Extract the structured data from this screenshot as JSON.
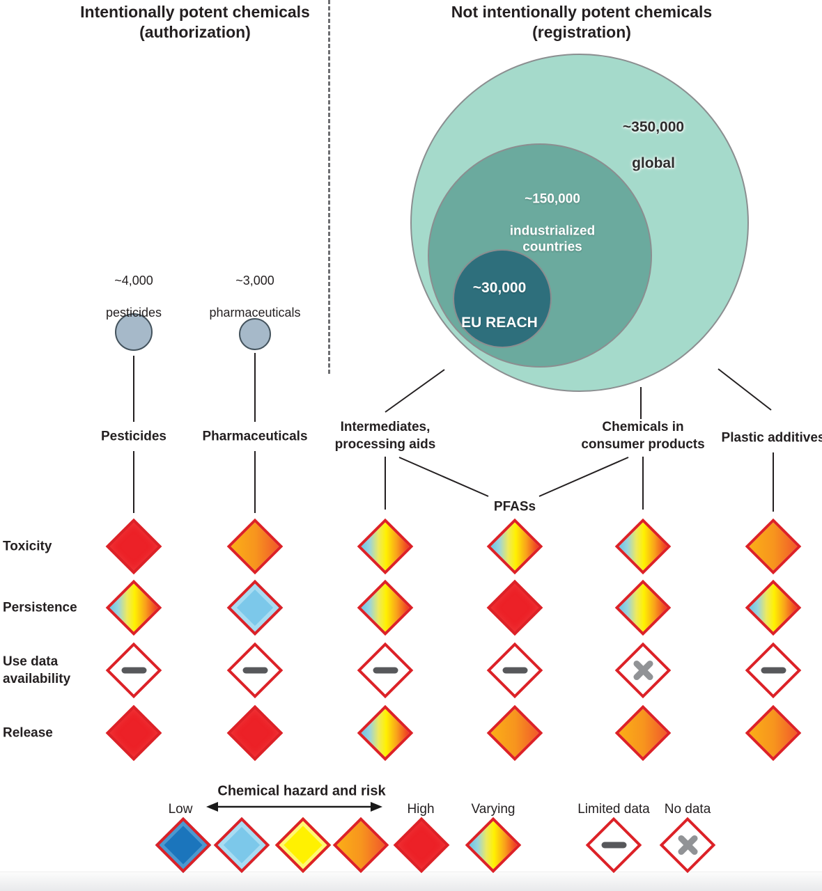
{
  "headers": {
    "left": {
      "line1": "Intentionally potent chemicals",
      "line2": "(authorization)"
    },
    "right": {
      "line1": "Not intentionally potent chemicals",
      "line2": "(registration)"
    }
  },
  "euler": {
    "outer_value": "~350,000",
    "outer_name": "global",
    "middle_value": "~150,000",
    "middle_name": "industrialized\ncountries",
    "inner_value": "~30,000",
    "inner_name": "EU REACH"
  },
  "authorized_sources": [
    {
      "count": "~4,000",
      "name": "pesticides"
    },
    {
      "count": "~3,000",
      "name": "pharmaceuticals"
    }
  ],
  "columns": [
    "Pesticides",
    "Pharmaceuticals",
    "Intermediates,\nprocessing aids",
    "PFASs",
    "Chemicals in\nconsumer products",
    "Plastic additives"
  ],
  "rows": [
    "Toxicity",
    "Persistence",
    "Use data\navailability",
    "Release"
  ],
  "matrix": [
    [
      "red",
      "orange",
      "varying",
      "varying",
      "varying",
      "orange"
    ],
    [
      "varying",
      "lightblue",
      "varying",
      "red",
      "varying",
      "varying"
    ],
    [
      "limited",
      "limited",
      "limited",
      "limited",
      "nodata",
      "limited"
    ],
    [
      "red",
      "red",
      "varying",
      "orange",
      "orange",
      "orange"
    ]
  ],
  "legend": {
    "title": "Chemical hazard and risk",
    "low_label": "Low",
    "high_label": "High",
    "scale": [
      "blue",
      "lightblue",
      "yellow",
      "orange",
      "red"
    ],
    "varying_label": "Varying",
    "limited_label": "Limited data",
    "nodata_label": "No data"
  },
  "colors": {
    "outer_circle": "#A5DACB",
    "middle_circle": "#6BAA9E",
    "inner_circle": "#2E6F7C",
    "source_circle": "#A6B9C9",
    "diamond_border": "#DC2127",
    "red": "#EC2127",
    "orange": "#F7941E",
    "yellow": "#FFF101",
    "lightblue": "#7CC8EA",
    "blue": "#1B75BC",
    "dash_mark": "#57585B",
    "x_mark": "#919396"
  }
}
